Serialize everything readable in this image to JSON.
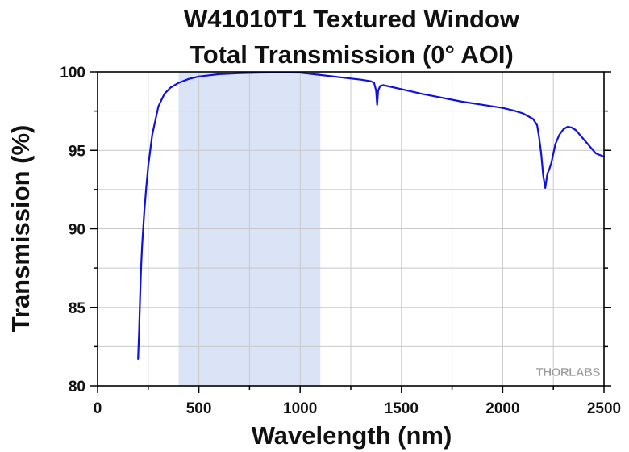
{
  "chart_data": {
    "type": "line",
    "title_line1": "W41010T1 Textured Window",
    "title_line2": "Total Transmission (0° AOI)",
    "xlabel": "Wavelength (nm)",
    "ylabel": "Transmission (%)",
    "xlim": [
      0,
      2500
    ],
    "ylim": [
      80,
      100
    ],
    "x_ticks": [
      0,
      500,
      1000,
      1500,
      2000,
      2500
    ],
    "x_tick_labels": [
      "0",
      "500",
      "1000",
      "1500",
      "2000",
      "2500"
    ],
    "y_ticks": [
      80,
      85,
      90,
      95,
      100
    ],
    "y_tick_labels": [
      "80",
      "85",
      "90",
      "95",
      "100"
    ],
    "grid": true,
    "highlight_band": {
      "x_start": 400,
      "x_end": 1100,
      "color": "#dbe4f6"
    },
    "series": [
      {
        "color": "#1010e0",
        "x": [
          200,
          205,
          210,
          215,
          220,
          230,
          240,
          250,
          270,
          300,
          330,
          360,
          400,
          450,
          500,
          600,
          700,
          800,
          900,
          1000,
          1100,
          1200,
          1300,
          1350,
          1365,
          1375,
          1380,
          1385,
          1395,
          1410,
          1430,
          1500,
          1600,
          1700,
          1800,
          1900,
          2000,
          2050,
          2100,
          2150,
          2170,
          2180,
          2190,
          2200,
          2210,
          2220,
          2230,
          2240,
          2250,
          2260,
          2280,
          2300,
          2320,
          2340,
          2360,
          2380,
          2400,
          2420,
          2440,
          2460,
          2480,
          2500
        ],
        "y": [
          81.7,
          83.5,
          85.8,
          87.6,
          89.0,
          91.0,
          92.6,
          94.0,
          96.0,
          97.8,
          98.6,
          99.0,
          99.3,
          99.55,
          99.7,
          99.85,
          99.92,
          99.95,
          99.96,
          99.95,
          99.8,
          99.65,
          99.5,
          99.4,
          99.3,
          98.8,
          97.9,
          98.8,
          99.1,
          99.15,
          99.1,
          98.9,
          98.6,
          98.35,
          98.1,
          97.9,
          97.7,
          97.55,
          97.35,
          97.0,
          96.6,
          95.8,
          94.8,
          93.4,
          92.6,
          93.5,
          93.8,
          94.2,
          94.8,
          95.4,
          96.0,
          96.35,
          96.5,
          96.45,
          96.3,
          96.0,
          95.7,
          95.4,
          95.1,
          94.8,
          94.7,
          94.6
        ]
      }
    ],
    "watermark": "THORLABS"
  }
}
